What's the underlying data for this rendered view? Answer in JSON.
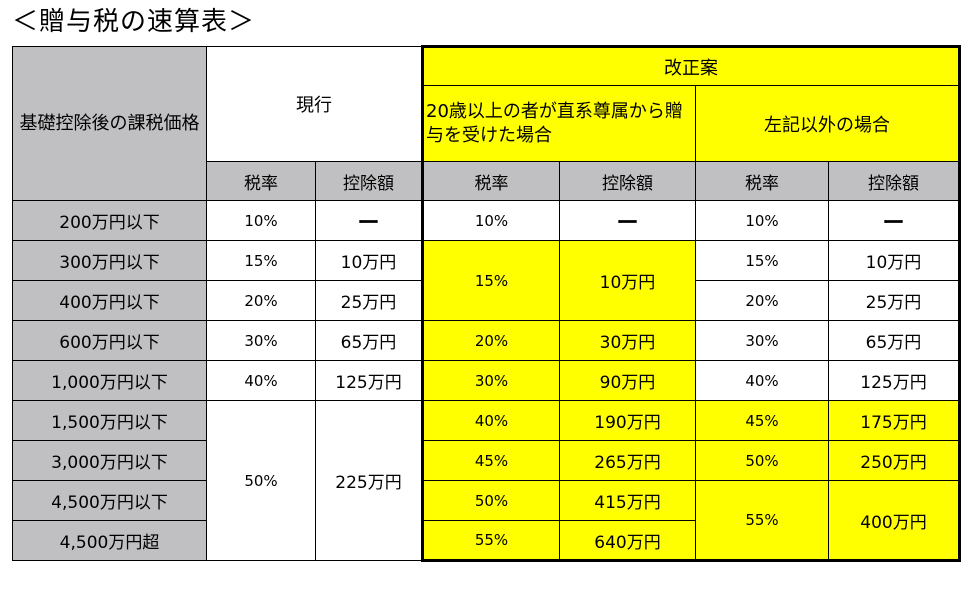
{
  "title": "＜贈与税の速算表＞",
  "headers": {
    "base": "基礎控除後の課税価格",
    "current": "現行",
    "reform": "改正案",
    "reform_direct": "20歳以上の者が直系尊属から贈与を受けた場合",
    "reform_other": "左記以外の場合",
    "rate": "税率",
    "deduction": "控除額"
  },
  "rows": [
    {
      "bracket": "200万円以下",
      "cur_rate": "10%",
      "cur_ded": "ー",
      "d_rate": "10%",
      "d_ded": "ー",
      "o_rate": "10%",
      "o_ded": "ー"
    },
    {
      "bracket": "300万円以下",
      "cur_rate": "15%",
      "cur_ded": "10万円",
      "d_rate": "15%",
      "d_ded": "10万円",
      "o_rate": "15%",
      "o_ded": "10万円"
    },
    {
      "bracket": "400万円以下",
      "cur_rate": "20%",
      "cur_ded": "25万円",
      "o_rate": "20%",
      "o_ded": "25万円"
    },
    {
      "bracket": "600万円以下",
      "cur_rate": "30%",
      "cur_ded": "65万円",
      "d_rate": "20%",
      "d_ded": "30万円",
      "o_rate": "30%",
      "o_ded": "65万円"
    },
    {
      "bracket": "1,000万円以下",
      "cur_rate": "40%",
      "cur_ded": "125万円",
      "d_rate": "30%",
      "d_ded": "90万円",
      "o_rate": "40%",
      "o_ded": "125万円"
    },
    {
      "bracket": "1,500万円以下",
      "cur_rate": "50%",
      "cur_ded": "225万円",
      "d_rate": "40%",
      "d_ded": "190万円",
      "o_rate": "45%",
      "o_ded": "175万円"
    },
    {
      "bracket": "3,000万円以下",
      "d_rate": "45%",
      "d_ded": "265万円",
      "o_rate": "50%",
      "o_ded": "250万円"
    },
    {
      "bracket": "4,500万円以下",
      "d_rate": "50%",
      "d_ded": "415万円",
      "o_rate": "55%",
      "o_ded": "400万円"
    },
    {
      "bracket": "4,500万円超",
      "d_rate": "55%",
      "d_ded": "640万円"
    }
  ],
  "colors": {
    "header_gray": "#c0c0c2",
    "highlight_yellow": "#ffff00",
    "border": "#000000"
  }
}
